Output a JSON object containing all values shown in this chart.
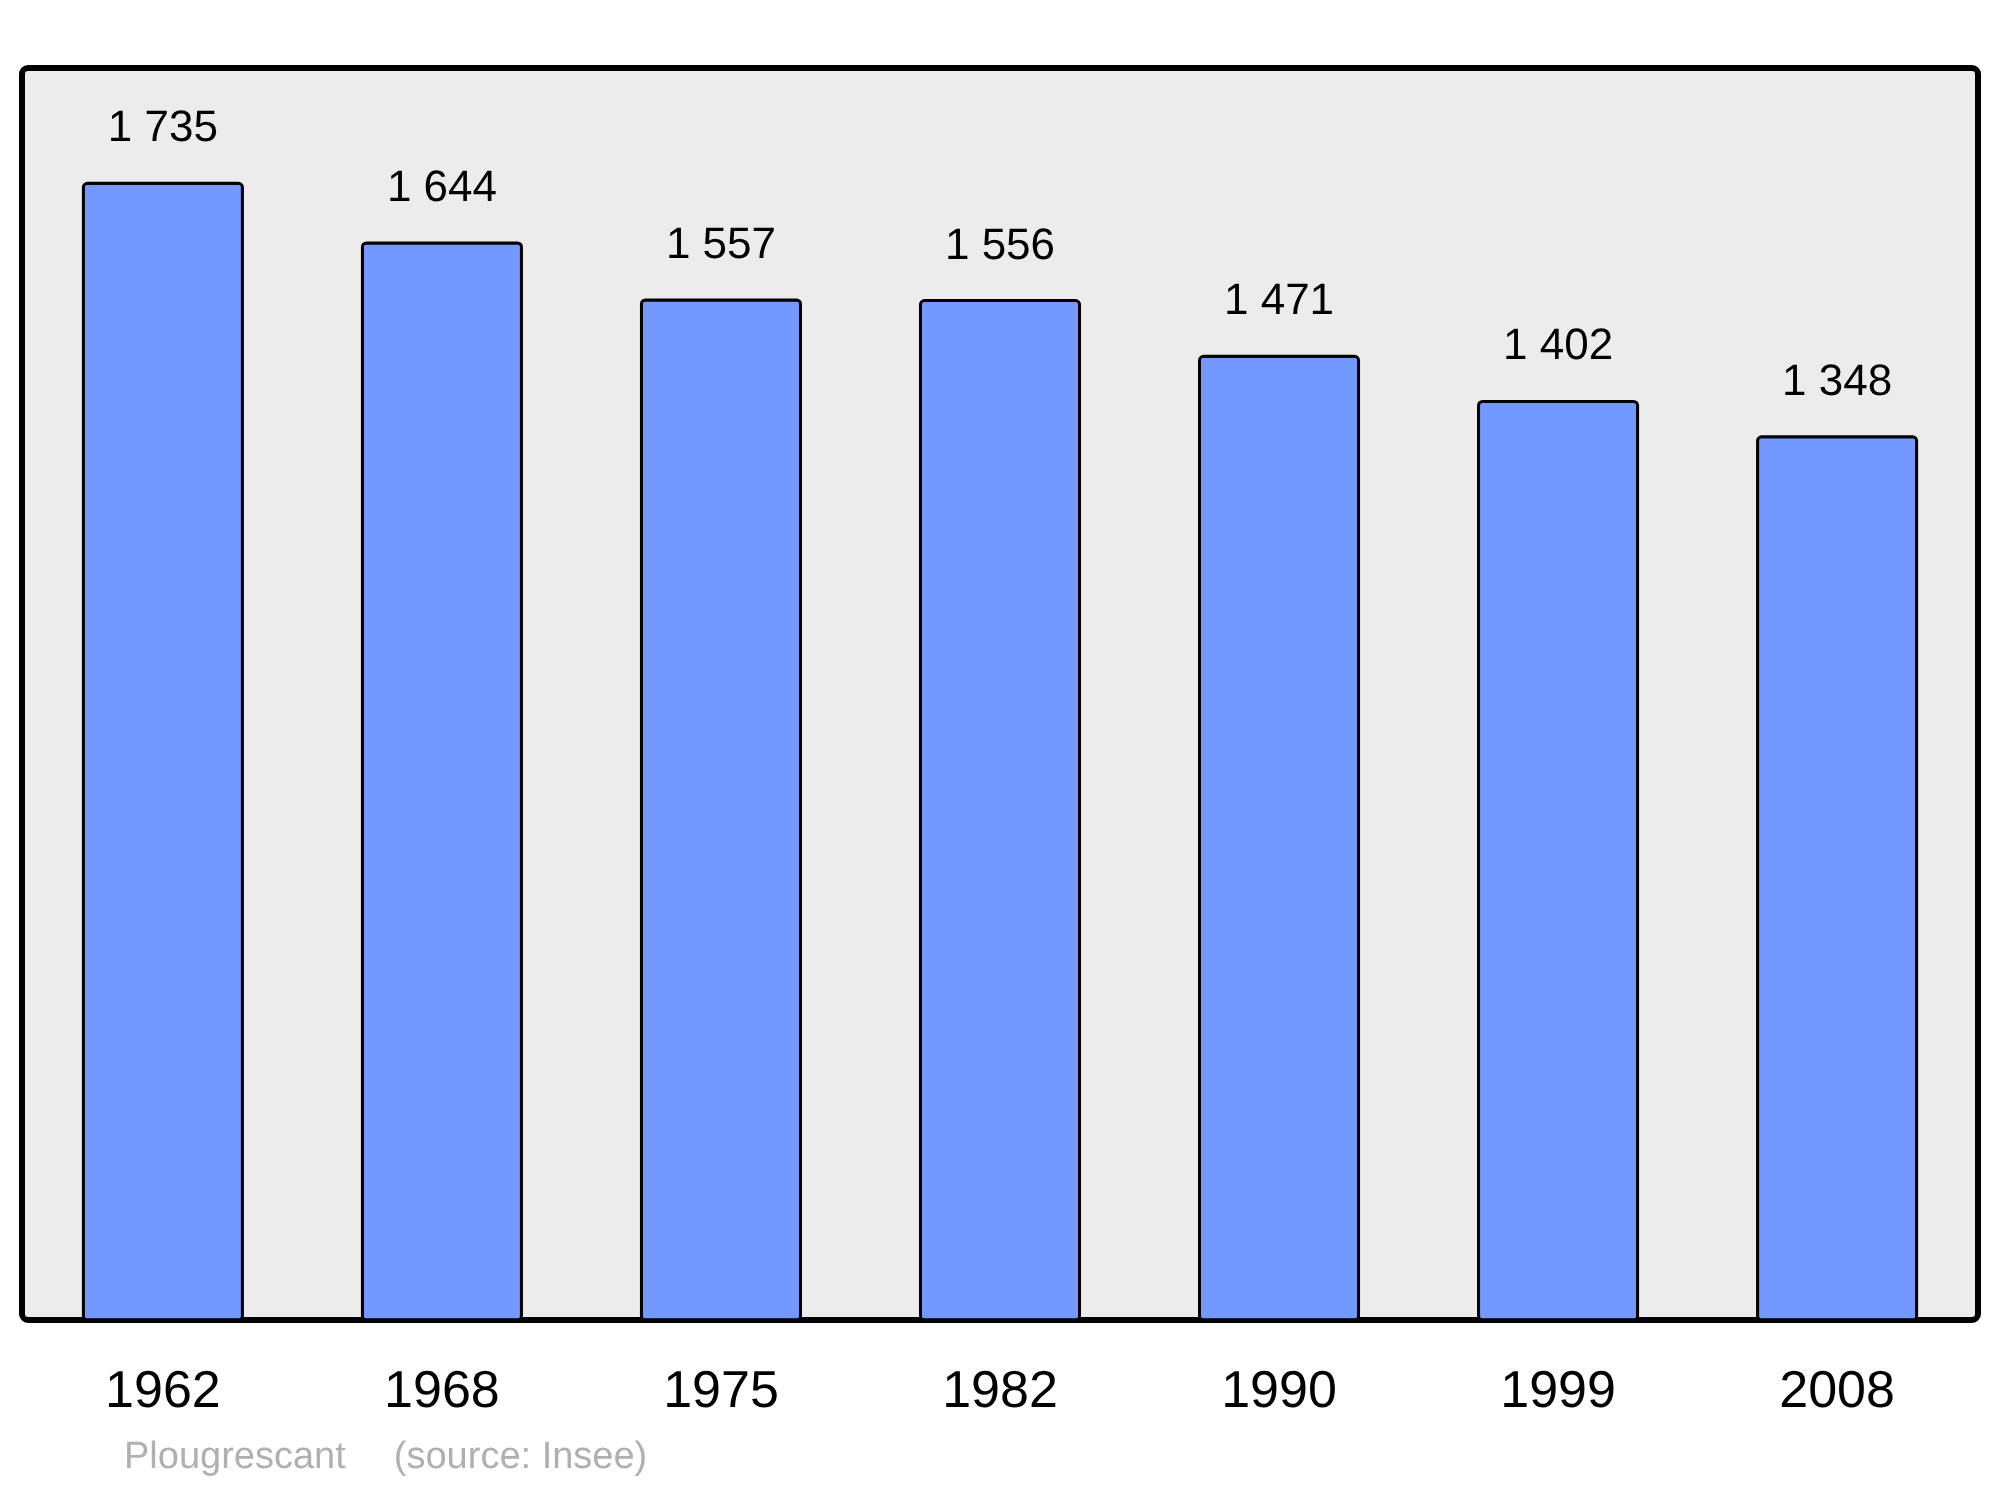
{
  "chart_data": {
    "type": "bar",
    "categories": [
      "1962",
      "1968",
      "1975",
      "1982",
      "1990",
      "1999",
      "2008"
    ],
    "values": [
      1735,
      1644,
      1557,
      1556,
      1471,
      1402,
      1348
    ],
    "value_labels": [
      "1 735",
      "1 644",
      "1 557",
      "1 556",
      "1 471",
      "1 402",
      "1 348"
    ],
    "color": "#7399ff",
    "ylim": [
      0,
      1911
    ],
    "tick_labels": "x",
    "annotations": [
      "Plougrescant",
      "(source: Insee)"
    ]
  }
}
